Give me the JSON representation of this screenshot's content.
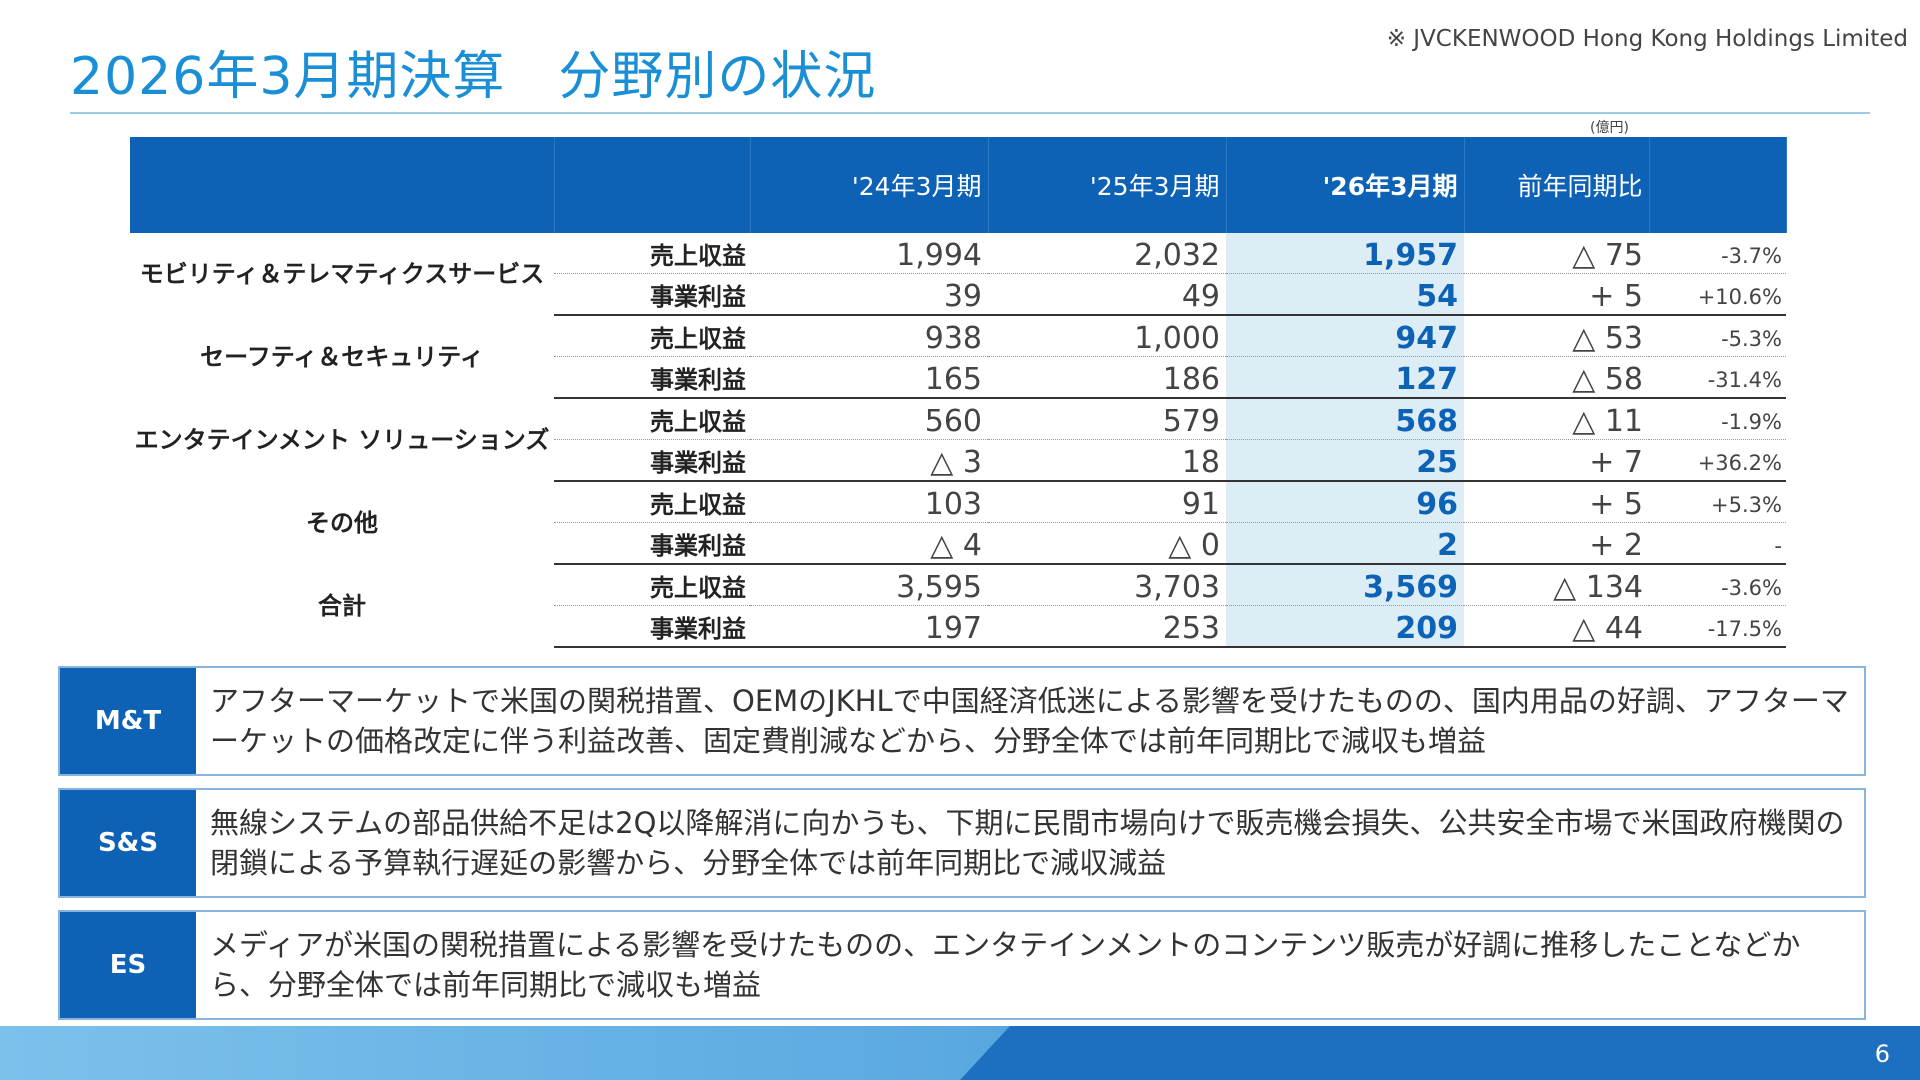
{
  "header": {
    "title": "2026年3月期決算　分野別の状況",
    "company": "※ JVCKENWOOD Hong Kong Holdings Limited",
    "unit": "(億円)"
  },
  "table": {
    "columns": [
      "",
      "",
      "'24年3月期",
      "'25年3月期",
      "'26年3月期",
      "前年同期比",
      ""
    ],
    "rows": [
      {
        "segment": "モビリティ＆テレマティクスサービス",
        "item": "売上収益",
        "fy24": "1,994",
        "fy25": "2,032",
        "fy26": "1,957",
        "diff": "△ 75",
        "pct": "-3.7%"
      },
      {
        "segment": "",
        "item": "事業利益",
        "fy24": "39",
        "fy25": "49",
        "fy26": "54",
        "diff": "+ 5",
        "pct": "+10.6%"
      },
      {
        "segment": "セーフティ＆セキュリティ",
        "item": "売上収益",
        "fy24": "938",
        "fy25": "1,000",
        "fy26": "947",
        "diff": "△ 53",
        "pct": "-5.3%"
      },
      {
        "segment": "",
        "item": "事業利益",
        "fy24": "165",
        "fy25": "186",
        "fy26": "127",
        "diff": "△ 58",
        "pct": "-31.4%"
      },
      {
        "segment": "エンタテインメント ソリューションズ",
        "item": "売上収益",
        "fy24": "560",
        "fy25": "579",
        "fy26": "568",
        "diff": "△ 11",
        "pct": "-1.9%"
      },
      {
        "segment": "",
        "item": "事業利益",
        "fy24": "△ 3",
        "fy25": "18",
        "fy26": "25",
        "diff": "+ 7",
        "pct": "+36.2%"
      },
      {
        "segment": "その他",
        "item": "売上収益",
        "fy24": "103",
        "fy25": "91",
        "fy26": "96",
        "diff": "+ 5",
        "pct": "+5.3%"
      },
      {
        "segment": "",
        "item": "事業利益",
        "fy24": "△ 4",
        "fy25": "△ 0",
        "fy26": "2",
        "diff": "+ 2",
        "pct": "-"
      },
      {
        "segment": "合計",
        "item": "売上収益",
        "fy24": "3,595",
        "fy25": "3,703",
        "fy26": "3,569",
        "diff": "△ 134",
        "pct": "-3.6%"
      },
      {
        "segment": "",
        "item": "事業利益",
        "fy24": "197",
        "fy25": "253",
        "fy26": "209",
        "diff": "△ 44",
        "pct": "-17.5%"
      }
    ]
  },
  "comments": [
    {
      "label": "M&T",
      "text": "アフターマーケットで米国の関税措置、OEMのJKHLで中国経済低迷による影響を受けたものの、国内用品の好調、アフターマーケットの価格改定に伴う利益改善、固定費削減などから、分野全体では前年同期比で減収も増益"
    },
    {
      "label": "S&S",
      "text": "無線システムの部品供給不足は2Q以降解消に向かうも、下期に民間市場向けで販売機会損失、公共安全市場で米国政府機関の閉鎖による予算執行遅延の影響から、分野全体では前年同期比で減収減益"
    },
    {
      "label": "ES",
      "text": "メディアが米国の関税措置による影響を受けたものの、エンタテインメントのコンテンツ販売が好調に推移したことなどから、分野全体では前年同期比で減収も増益"
    }
  ],
  "footer": {
    "page": "6"
  },
  "colors": {
    "accent": "#1a8fd6",
    "header_fill": "#0d62b6",
    "highlight": "#dcedf6"
  }
}
